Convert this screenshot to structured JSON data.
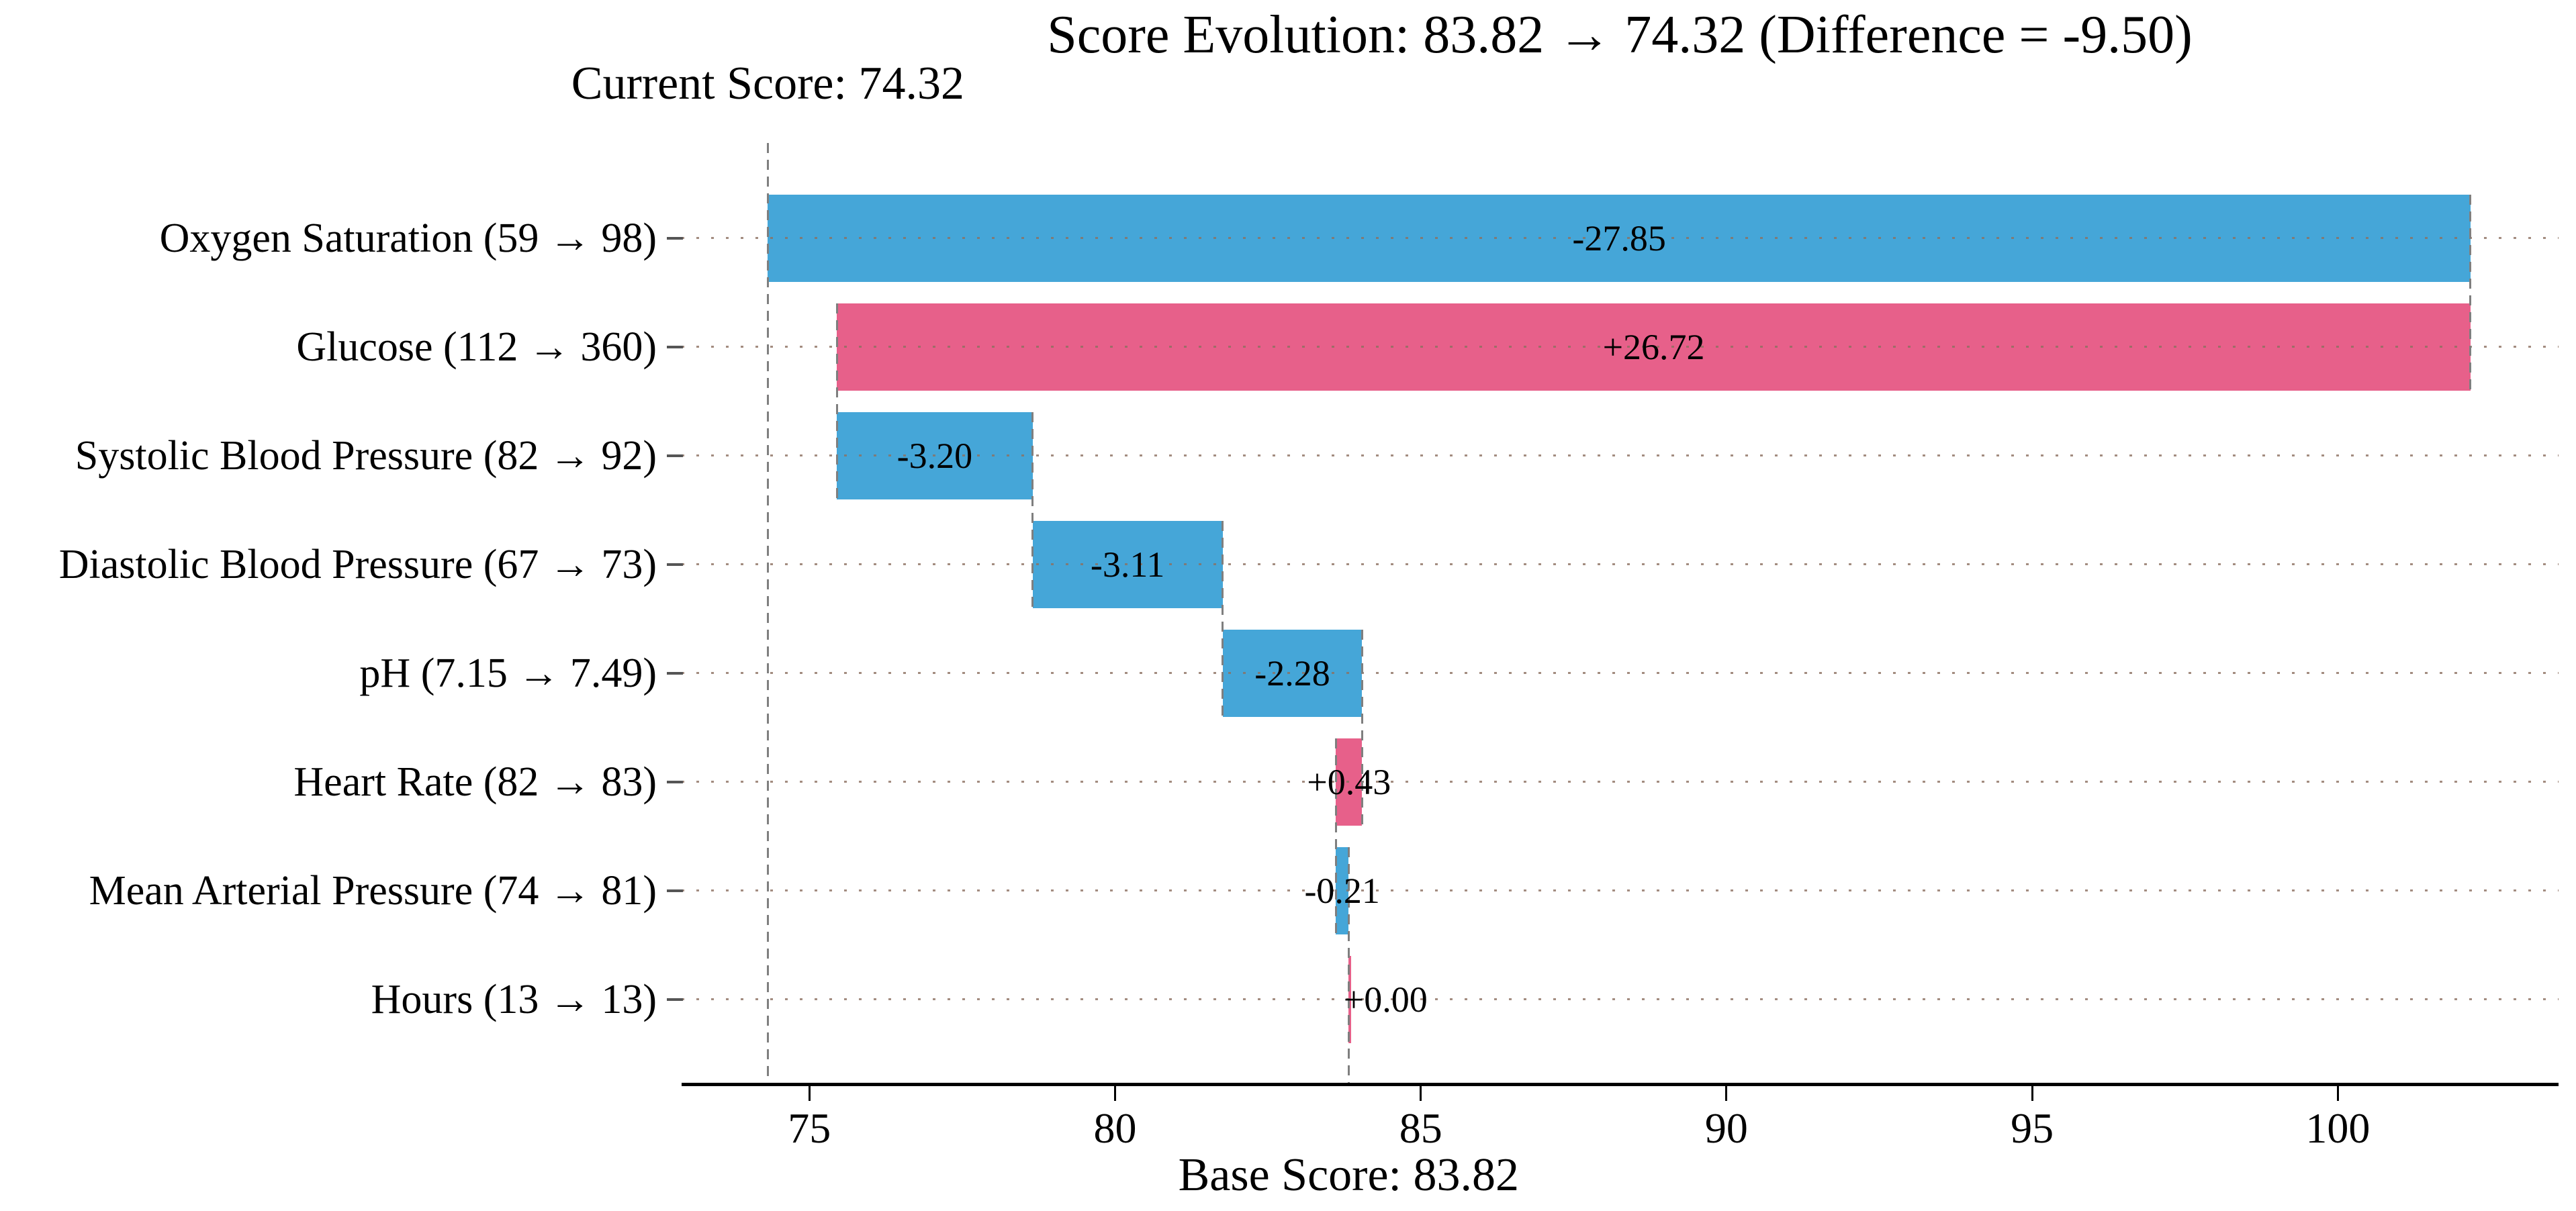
{
  "page": {
    "background": "#ffffff"
  },
  "chart_data": {
    "type": "bar",
    "variant": "horizontal-waterfall",
    "title": "Score Evolution: 83.82 → 74.32 (Difference = -9.50)",
    "base_score": 83.82,
    "current_score": 74.32,
    "difference": -9.5,
    "annotations": {
      "current_label": "Current Score: 74.32",
      "base_label": "Base Score: 83.82"
    },
    "categories": [
      "Oxygen Saturation (59 → 98)",
      "Glucose (112 → 360)",
      "Systolic Blood Pressure (82 → 92)",
      "Diastolic Blood Pressure (67 → 73)",
      "pH (7.15 → 7.49)",
      "Heart Rate (82 → 83)",
      "Mean Arterial Pressure (74 → 81)",
      "Hours (13 → 13)"
    ],
    "values": [
      -27.85,
      26.72,
      -3.2,
      -3.11,
      -2.28,
      0.43,
      -0.21,
      0.0
    ],
    "value_labels": [
      "-27.85",
      "+26.72",
      "-3.20",
      "-3.11",
      "-2.28",
      "+0.43",
      "-0.21",
      "+0.00"
    ],
    "cumulative_segments": [
      [
        74.32,
        102.17
      ],
      [
        75.45,
        102.17
      ],
      [
        75.45,
        78.65
      ],
      [
        78.65,
        81.76
      ],
      [
        81.76,
        84.04
      ],
      [
        83.61,
        84.04
      ],
      [
        83.61,
        83.82
      ],
      [
        83.82,
        83.82
      ]
    ],
    "x_ticks": [
      75,
      80,
      85,
      90,
      95,
      100
    ],
    "x_domain": [
      72.91,
      103.61
    ],
    "grid": "dotted-horizontal",
    "legend": "none",
    "colors": {
      "negative_bar": "#45A6D8",
      "positive_bar": "#E7608A",
      "connector": "#7f7f7f",
      "gridline": "#8c7060",
      "axis": "#000000",
      "text": "#000000"
    }
  }
}
